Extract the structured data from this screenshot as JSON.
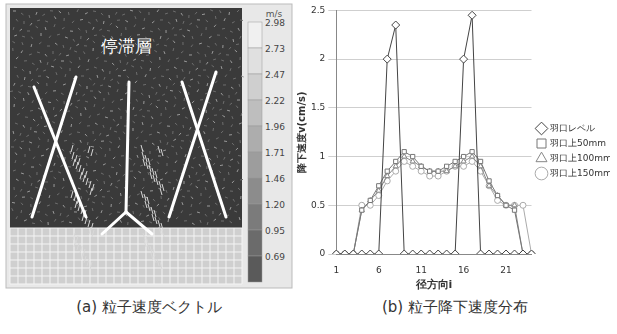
{
  "figure": {
    "panel_a": {
      "caption": "(a) 粒子速度ベクトル",
      "label": "停滞層",
      "colorbar": {
        "unit": "m/s",
        "ticks": [
          2.98,
          2.73,
          2.47,
          2.22,
          1.96,
          1.71,
          1.46,
          {
            "value": 1.2,
            "label": "1.20"
          },
          0.95,
          0.69
        ]
      }
    },
    "panel_b": {
      "caption": "(b) 粒子降下速度分布"
    }
  },
  "chart_data": {
    "type": "line",
    "x_label": "径方向i",
    "y_label": "降下速度v(cm/s)",
    "categories": [
      1,
      null,
      null,
      null,
      null,
      6,
      null,
      null,
      null,
      null,
      11,
      null,
      null,
      null,
      null,
      16,
      null,
      null,
      null,
      null,
      21,
      null,
      null,
      null
    ],
    "series": [
      {
        "name": "羽口レベル",
        "color": "#444444",
        "marker": "diamond",
        "line_style": "solid",
        "values": [
          0,
          0,
          0,
          0,
          0,
          0,
          2.0,
          2.35,
          0,
          0,
          0,
          0,
          0,
          0,
          0,
          2.0,
          2.45,
          0,
          0,
          0,
          0,
          0,
          0,
          0
        ]
      },
      {
        "name": "羽口上50mm",
        "color": "#777777",
        "marker": "square",
        "line_style": "solid",
        "values": [
          0,
          0,
          0,
          0.45,
          0.55,
          0.7,
          0.85,
          0.95,
          1.05,
          1.0,
          0.9,
          0.85,
          0.85,
          0.9,
          0.95,
          1.0,
          1.05,
          0.95,
          0.75,
          0.6,
          0.5,
          0.45,
          0,
          0
        ]
      },
      {
        "name": "羽口上100mm",
        "color": "#888888",
        "marker": "triangle",
        "line_style": "solid",
        "values": [
          0,
          0,
          0,
          0.45,
          0.55,
          0.65,
          0.8,
          0.9,
          1.0,
          0.95,
          0.9,
          0.85,
          0.85,
          0.85,
          0.9,
          0.95,
          1.0,
          0.9,
          0.7,
          0.6,
          0.5,
          0.5,
          0,
          0
        ]
      },
      {
        "name": "羽口上150mm",
        "color": "#aaaaaa",
        "marker": "circle",
        "line_style": "solid",
        "values": [
          0,
          0,
          0,
          0.5,
          0.5,
          0.6,
          0.75,
          0.85,
          0.95,
          0.9,
          0.85,
          0.8,
          0.8,
          0.85,
          0.9,
          0.9,
          0.95,
          0.85,
          0.7,
          0.55,
          0.5,
          0.5,
          0.5,
          0
        ]
      }
    ],
    "ylim": [
      0,
      2.5
    ],
    "yticks": [
      0,
      0.5,
      1,
      1.5,
      2,
      2.5
    ],
    "grid": "y",
    "legend": "right"
  }
}
